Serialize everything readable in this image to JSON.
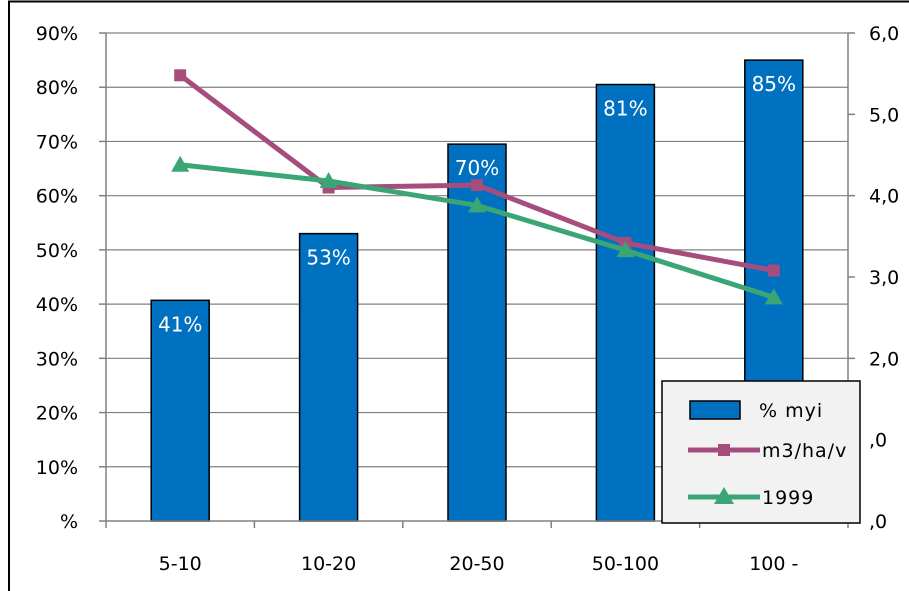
{
  "chart_data": {
    "type": "bar+line",
    "categories": [
      "5-10",
      "10-20",
      "20-50",
      "50-100",
      "100 -"
    ],
    "left_axis": {
      "ticks": [
        "%",
        "10%",
        "20%",
        "30%",
        "40%",
        "50%",
        "60%",
        "70%",
        "80%",
        "90%"
      ],
      "ylim": [
        0,
        90
      ]
    },
    "right_axis": {
      "ticks": [
        ",0",
        ",0",
        "2,0",
        "3,0",
        "4,0",
        "5,0",
        "6,0"
      ],
      "ylim": [
        0,
        6
      ]
    },
    "bars": {
      "name": "% myi",
      "values": [
        40.7,
        53.0,
        69.5,
        80.5,
        85.0
      ],
      "labels": [
        "41%",
        "53%",
        "70%",
        "81%",
        "85%"
      ],
      "color": "#0070C0"
    },
    "series": [
      {
        "name": "m3/ha/v",
        "values": [
          5.48,
          4.1,
          4.13,
          3.42,
          3.08
        ],
        "color": "#A54E7D",
        "marker": "square"
      },
      {
        "name": "1999",
        "values": [
          4.38,
          4.18,
          3.88,
          3.33,
          2.75
        ],
        "color": "#3BA675",
        "marker": "triangle"
      }
    ],
    "grid": "horizontal",
    "legend_position": "bottom-right"
  }
}
